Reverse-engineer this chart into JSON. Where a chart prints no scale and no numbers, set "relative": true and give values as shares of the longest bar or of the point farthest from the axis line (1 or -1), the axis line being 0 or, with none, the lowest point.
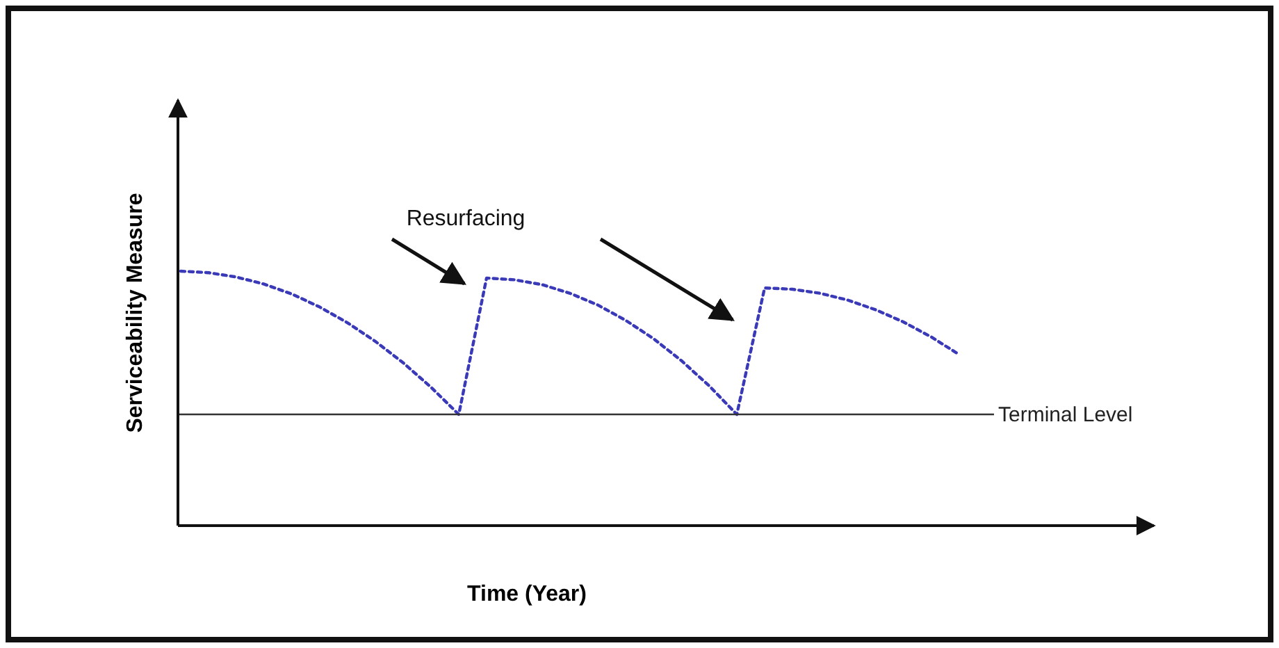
{
  "chart_data": {
    "type": "line",
    "relative": true,
    "xlabel": "Time (Year)",
    "ylabel": "Serviceability Measure",
    "line_style": "dotted",
    "categories": [
      null,
      null,
      null,
      null,
      null,
      null,
      null,
      null,
      null,
      null,
      null,
      null,
      null,
      null,
      null,
      null,
      null,
      null,
      null,
      null,
      null,
      null,
      null,
      null,
      null,
      null,
      null,
      null,
      null,
      null,
      null,
      null,
      null,
      null,
      null
    ],
    "series": [
      {
        "color": "#3a3ab8",
        "values": [
          1.0,
          0.994,
          0.977,
          0.949,
          0.91,
          0.859,
          0.797,
          0.724,
          0.64,
          0.544,
          0.437,
          0.973,
          0.966,
          0.947,
          0.913,
          0.867,
          0.807,
          0.735,
          0.649,
          0.55,
          0.437,
          0.934,
          0.929,
          0.913,
          0.886,
          0.848,
          0.8,
          0.741,
          0.672,
          null,
          null,
          null,
          null,
          null,
          null
        ]
      }
    ],
    "ref_lines": [
      {
        "axis": "y",
        "value": 0.437,
        "label": "Terminal Level",
        "color": "#333333"
      }
    ],
    "annotations": [
      "Resurfacing"
    ]
  }
}
